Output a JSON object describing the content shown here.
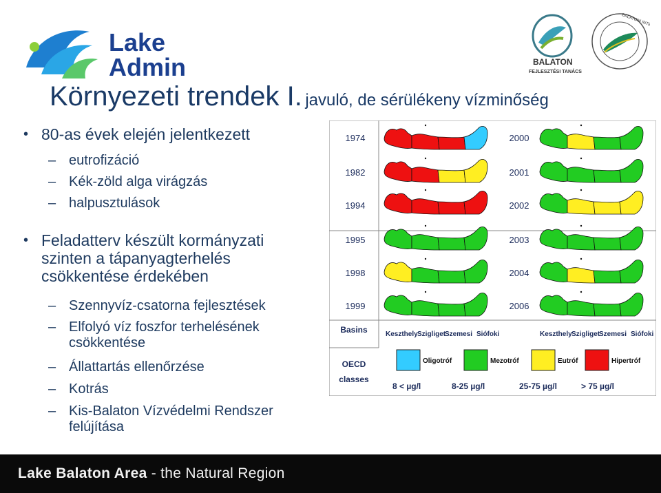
{
  "logo_left": {
    "line1": "Lake",
    "line2": "Admin"
  },
  "logo_right": {
    "name": "BALATON",
    "subtitle": "FEJLESZTÉSI TANÁCS",
    "ring_text": "BALATONI INTEGRÁCIÓS ÉS FEJLESZTÉSI ÜGYNÖKSÉG"
  },
  "title": {
    "main": "Környezeti trendek I.",
    "sub": "javuló, de sérülékeny vízminőség"
  },
  "bullets": [
    {
      "text": "80-as évek elején jelentkezett",
      "subs": [
        "eutrofizáció",
        "Kék-zöld alga virágzás",
        "halpusztulások"
      ]
    },
    {
      "text": "Feladatterv készült kormányzati szinten a tápanyagterhelés csökkentése érdekében",
      "subs": [
        "Szennyvíz-csatorna fejlesztések",
        "Elfolyó víz foszfor terhelésének csökkentése",
        "Állattartás ellenőrzése",
        "Kotrás",
        "Kis-Balaton Vízvédelmi Rendszer felújítása"
      ]
    }
  ],
  "figure": {
    "left_years": [
      "1974",
      "1982",
      "1994",
      "1995",
      "1998",
      "1999"
    ],
    "right_years": [
      "2000",
      "2001",
      "2002",
      "2003",
      "2004",
      "2006"
    ],
    "left_maps": [
      [
        "red",
        "red",
        "red",
        "cyan"
      ],
      [
        "red",
        "red",
        "yellow",
        "yellow"
      ],
      [
        "red",
        "red",
        "red",
        "red"
      ],
      [
        "green",
        "green",
        "green",
        "green"
      ],
      [
        "yellow",
        "green",
        "green",
        "green"
      ],
      [
        "green",
        "green",
        "green",
        "green"
      ]
    ],
    "right_maps": [
      [
        "green",
        "yellow",
        "green",
        "green"
      ],
      [
        "green",
        "green",
        "green",
        "green"
      ],
      [
        "green",
        "yellow",
        "yellow",
        "yellow"
      ],
      [
        "green",
        "green",
        "green",
        "green"
      ],
      [
        "green",
        "yellow",
        "green",
        "green"
      ],
      [
        "green",
        "green",
        "green",
        "green"
      ]
    ],
    "basins_label": "Basins",
    "basins": [
      "Keszthely",
      "Szigliget",
      "Szemesi",
      "Siófoki"
    ],
    "oecd_label": [
      "OECD",
      "classes"
    ],
    "classes": [
      {
        "name": "Oligotróf",
        "color": "#33ccff",
        "range": "8 < µg/l"
      },
      {
        "name": "Mezotróf",
        "color": "#22cc22",
        "range": "8-25 µg/l"
      },
      {
        "name": "Eutróf",
        "color": "#ffee22",
        "range": "25-75 µg/l"
      },
      {
        "name": "Hipertróf",
        "color": "#ee1111",
        "range": "> 75 µg/l"
      }
    ]
  },
  "footer": {
    "brand": "Lake Balaton Area",
    "rest": " - the Natural Region"
  },
  "colors": {
    "red": "#ee1111",
    "yellow": "#ffee22",
    "green": "#22cc22",
    "cyan": "#33ccff"
  }
}
